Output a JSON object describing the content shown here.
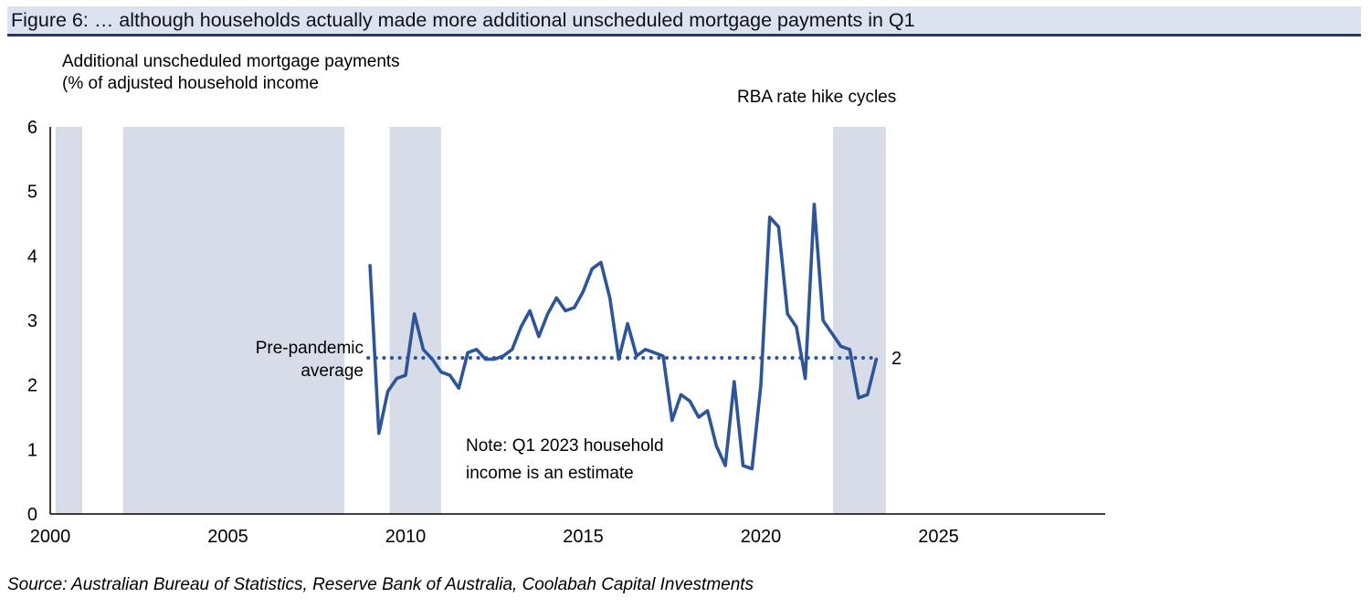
{
  "figure": {
    "title": "Figure 6: … although households actually made more additional unscheduled mortgage payments in Q1",
    "source": "Source: Australian Bureau of Statistics, Reserve Bank of Australia, Coolabah Capital Investments"
  },
  "chart_data": {
    "type": "line",
    "series_label_lines": [
      "Additional unscheduled mortgage payments",
      "(% of adjusted household income"
    ],
    "bands_label": "RBA rate hike cycles",
    "average_label_lines": [
      "Pre-pandemic",
      "average"
    ],
    "note_lines": [
      "Note: Q1 2023 household",
      "income is an estimate"
    ],
    "average_end_label": "2",
    "xlim": [
      2000,
      2029.7
    ],
    "ylim": [
      0,
      6
    ],
    "xticks": [
      2000,
      2005,
      2010,
      2015,
      2020,
      2025
    ],
    "yticks": [
      0,
      1,
      2,
      3,
      4,
      5,
      6
    ],
    "grid": false,
    "legend_position": "none",
    "shaded_bands_years": [
      [
        2000.15,
        2000.9
      ],
      [
        2002.05,
        2008.28
      ],
      [
        2009.55,
        2011.0
      ],
      [
        2022.03,
        2023.52
      ]
    ],
    "average_line": {
      "value": 2.42,
      "x_start": 2008.95,
      "x_end": 2023.15
    },
    "series": [
      {
        "name": "Additional unscheduled mortgage payments (% of adjusted household income)",
        "x": [
          2009.0,
          2009.25,
          2009.5,
          2009.75,
          2010.0,
          2010.25,
          2010.5,
          2010.75,
          2011.0,
          2011.25,
          2011.5,
          2011.75,
          2012.0,
          2012.25,
          2012.5,
          2012.75,
          2013.0,
          2013.25,
          2013.5,
          2013.75,
          2014.0,
          2014.25,
          2014.5,
          2014.75,
          2015.0,
          2015.25,
          2015.5,
          2015.75,
          2016.0,
          2016.25,
          2016.5,
          2016.75,
          2017.0,
          2017.25,
          2017.5,
          2017.75,
          2018.0,
          2018.25,
          2018.5,
          2018.75,
          2019.0,
          2019.25,
          2019.5,
          2019.75,
          2020.0,
          2020.25,
          2020.5,
          2020.75,
          2021.0,
          2021.25,
          2021.5,
          2021.75,
          2022.0,
          2022.25,
          2022.5,
          2022.75,
          2023.0,
          2023.25
        ],
        "y": [
          3.85,
          1.25,
          1.9,
          2.1,
          2.15,
          3.1,
          2.55,
          2.4,
          2.2,
          2.15,
          1.95,
          2.5,
          2.55,
          2.4,
          2.4,
          2.45,
          2.55,
          2.9,
          3.15,
          2.75,
          3.1,
          3.35,
          3.15,
          3.2,
          3.45,
          3.8,
          3.9,
          3.35,
          2.4,
          2.95,
          2.45,
          2.55,
          2.5,
          2.45,
          1.45,
          1.85,
          1.75,
          1.5,
          1.6,
          1.05,
          0.75,
          2.05,
          0.75,
          0.7,
          2.0,
          4.6,
          4.45,
          3.1,
          2.9,
          2.1,
          4.8,
          3.0,
          2.8,
          2.6,
          2.55,
          1.8,
          1.85,
          2.4
        ]
      }
    ],
    "colors": {
      "line": "#2e5597",
      "band": "#d7dce8",
      "header_band": "#dbe3f1",
      "header_underline": "#1f3864"
    }
  }
}
